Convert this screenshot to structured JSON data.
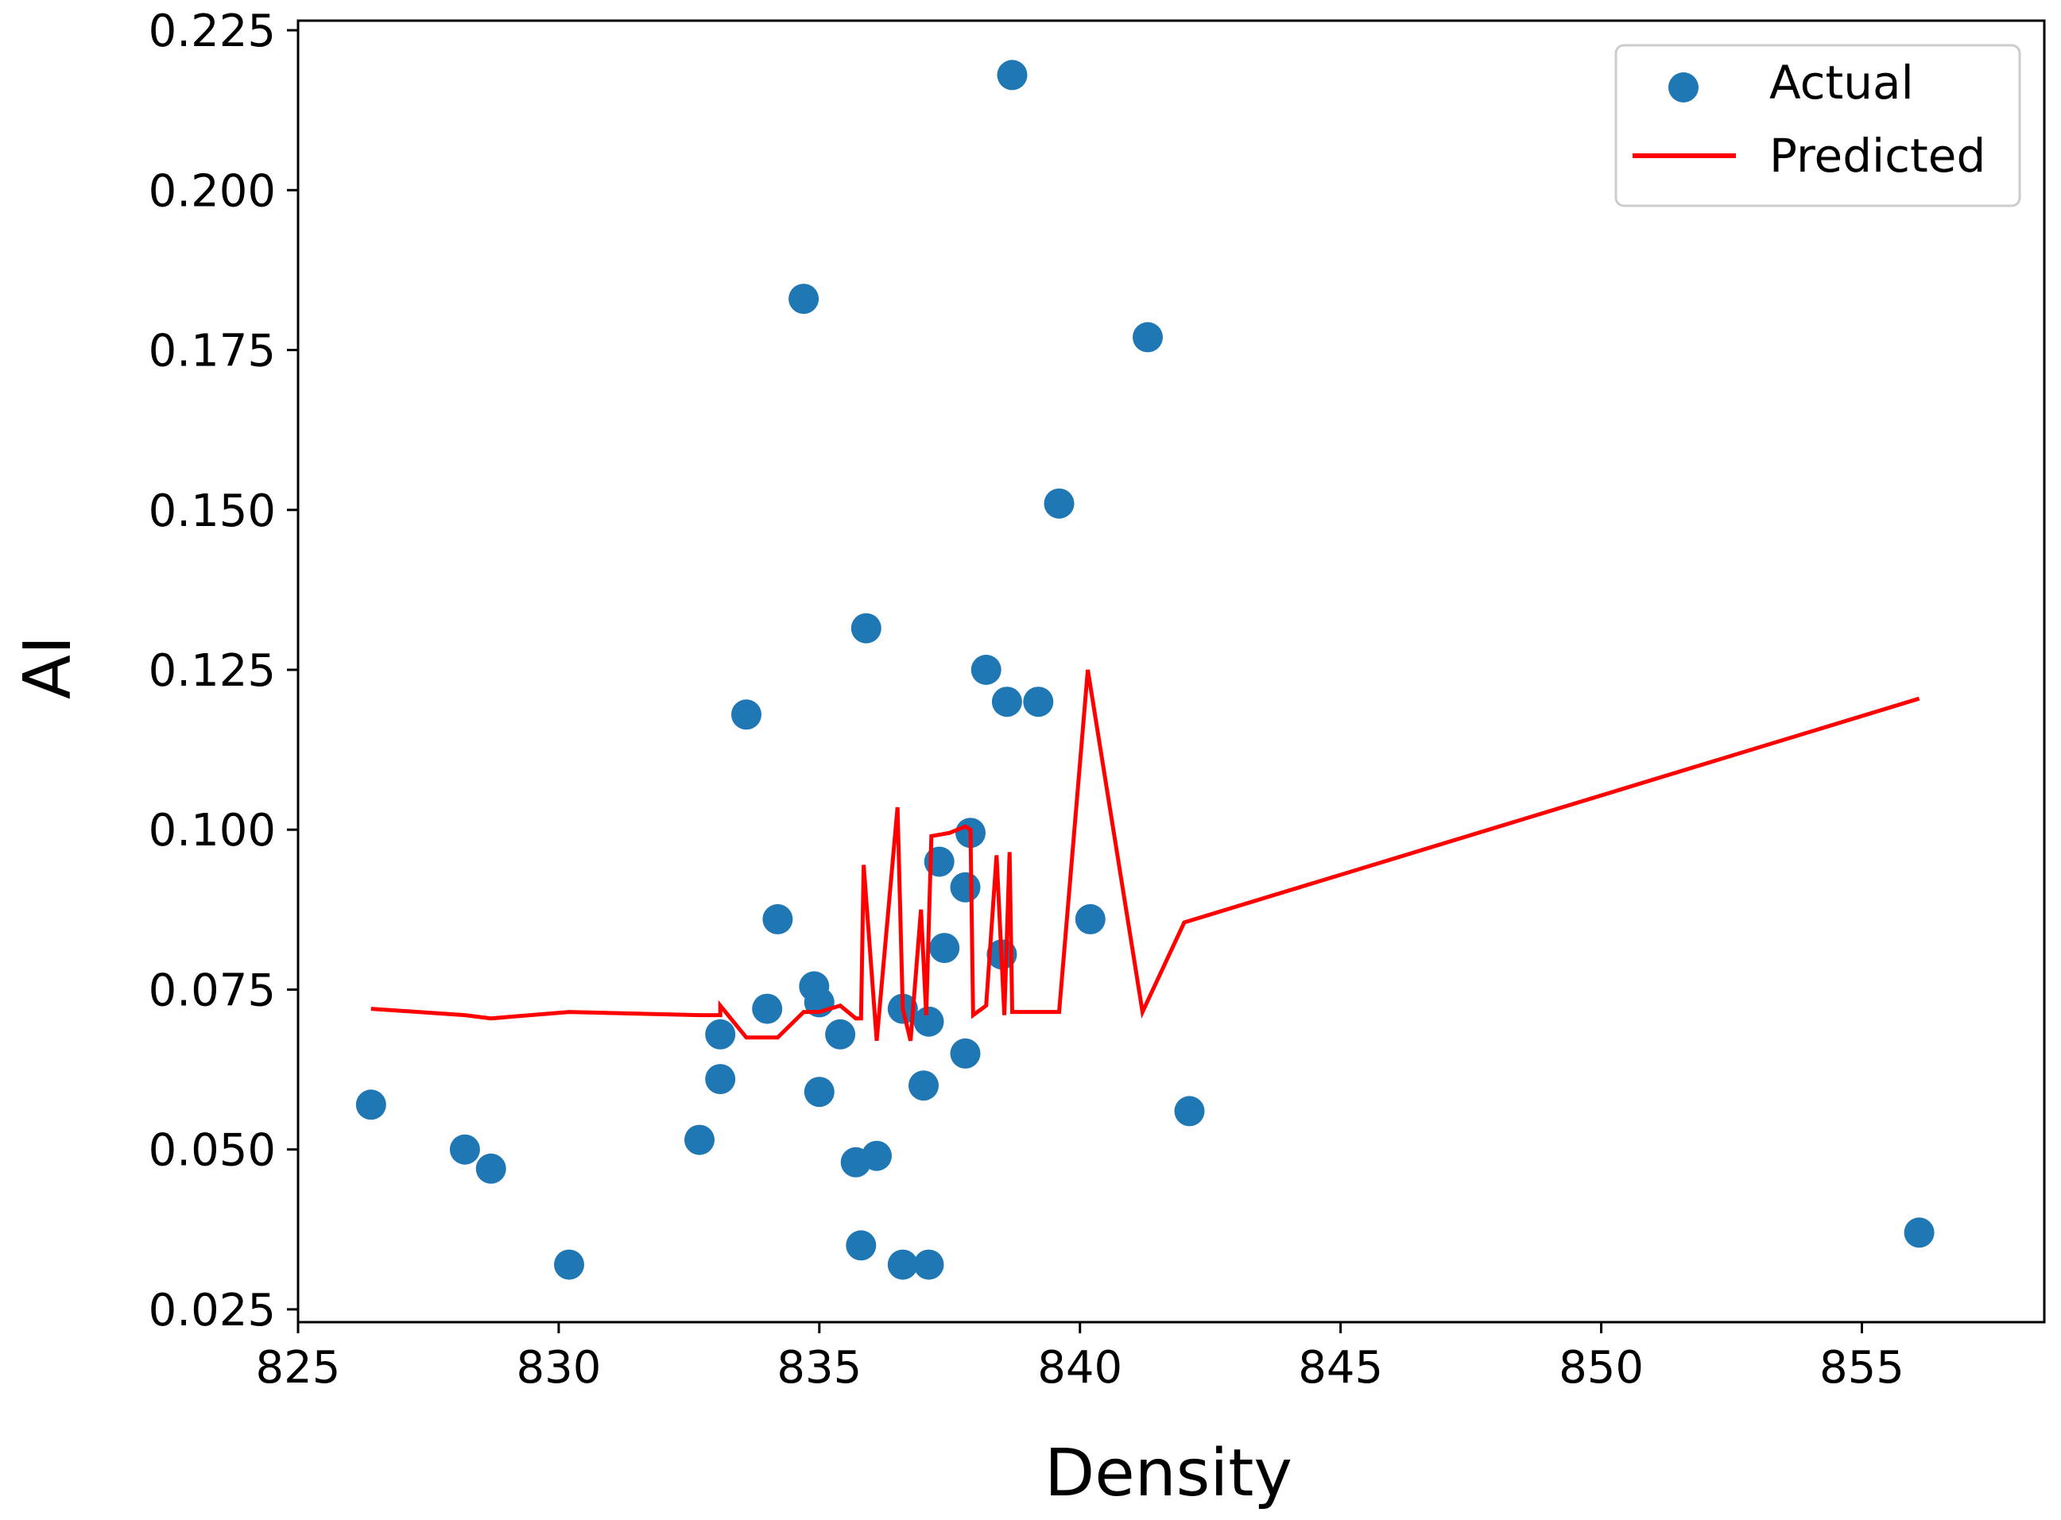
{
  "chart_data": {
    "type": "scatter",
    "title": "",
    "xlabel": "Density",
    "ylabel": "AI",
    "xlim": [
      825,
      858.5
    ],
    "ylim": [
      0.023,
      0.2265
    ],
    "xticks": [
      825,
      830,
      835,
      840,
      845,
      850,
      855
    ],
    "yticks": [
      0.025,
      0.05,
      0.075,
      0.1,
      0.125,
      0.15,
      0.175,
      0.2,
      0.225
    ],
    "xtick_labels": [
      "825",
      "830",
      "835",
      "840",
      "845",
      "850",
      "855"
    ],
    "ytick_labels": [
      "0.025",
      "0.050",
      "0.075",
      "0.100",
      "0.125",
      "0.150",
      "0.175",
      "0.200",
      "0.225"
    ],
    "grid": false,
    "legend_position": "top-right",
    "series": [
      {
        "name": "Actual",
        "kind": "scatter",
        "color": "#1f77b4",
        "points": [
          [
            826.4,
            0.057
          ],
          [
            828.2,
            0.05
          ],
          [
            828.7,
            0.047
          ],
          [
            830.2,
            0.032
          ],
          [
            832.7,
            0.0515
          ],
          [
            833.1,
            0.068
          ],
          [
            833.1,
            0.061
          ],
          [
            833.6,
            0.118
          ],
          [
            834.0,
            0.072
          ],
          [
            834.2,
            0.086
          ],
          [
            834.7,
            0.183
          ],
          [
            834.9,
            0.0755
          ],
          [
            835.0,
            0.073
          ],
          [
            835.0,
            0.059
          ],
          [
            835.4,
            0.068
          ],
          [
            835.7,
            0.048
          ],
          [
            835.8,
            0.035
          ],
          [
            835.9,
            0.1315
          ],
          [
            836.1,
            0.049
          ],
          [
            836.6,
            0.072
          ],
          [
            836.6,
            0.032
          ],
          [
            837.0,
            0.06
          ],
          [
            837.1,
            0.07
          ],
          [
            837.1,
            0.032
          ],
          [
            837.3,
            0.095
          ],
          [
            837.4,
            0.0815
          ],
          [
            837.8,
            0.091
          ],
          [
            837.8,
            0.065
          ],
          [
            837.9,
            0.0995
          ],
          [
            838.2,
            0.125
          ],
          [
            838.5,
            0.0805
          ],
          [
            838.6,
            0.12
          ],
          [
            838.7,
            0.218
          ],
          [
            839.2,
            0.12
          ],
          [
            839.6,
            0.151
          ],
          [
            840.2,
            0.086
          ],
          [
            841.3,
            0.177
          ],
          [
            842.1,
            0.056
          ],
          [
            856.1,
            0.037
          ]
        ]
      },
      {
        "name": "Predicted",
        "kind": "line",
        "color": "#ff0000",
        "points": [
          [
            826.4,
            0.072
          ],
          [
            828.2,
            0.071
          ],
          [
            828.7,
            0.0705
          ],
          [
            830.2,
            0.0715
          ],
          [
            832.7,
            0.071
          ],
          [
            833.1,
            0.071
          ],
          [
            833.1,
            0.0725
          ],
          [
            833.6,
            0.0675
          ],
          [
            834.0,
            0.0675
          ],
          [
            834.2,
            0.0675
          ],
          [
            834.7,
            0.0715
          ],
          [
            834.9,
            0.0715
          ],
          [
            835.0,
            0.0715
          ],
          [
            835.4,
            0.0725
          ],
          [
            835.7,
            0.0705
          ],
          [
            835.8,
            0.0705
          ],
          [
            835.85,
            0.0945
          ],
          [
            836.1,
            0.067
          ],
          [
            836.5,
            0.1035
          ],
          [
            836.6,
            0.072
          ],
          [
            836.75,
            0.067
          ],
          [
            836.95,
            0.0875
          ],
          [
            837.05,
            0.071
          ],
          [
            837.15,
            0.099
          ],
          [
            837.5,
            0.0995
          ],
          [
            837.8,
            0.1005
          ],
          [
            837.9,
            0.1
          ],
          [
            837.95,
            0.071
          ],
          [
            838.2,
            0.0725
          ],
          [
            838.4,
            0.096
          ],
          [
            838.55,
            0.071
          ],
          [
            838.65,
            0.0965
          ],
          [
            838.7,
            0.0715
          ],
          [
            839.6,
            0.0715
          ],
          [
            840.15,
            0.125
          ],
          [
            841.2,
            0.0715
          ],
          [
            842.0,
            0.0855
          ],
          [
            856.1,
            0.1205
          ]
        ]
      }
    ]
  }
}
